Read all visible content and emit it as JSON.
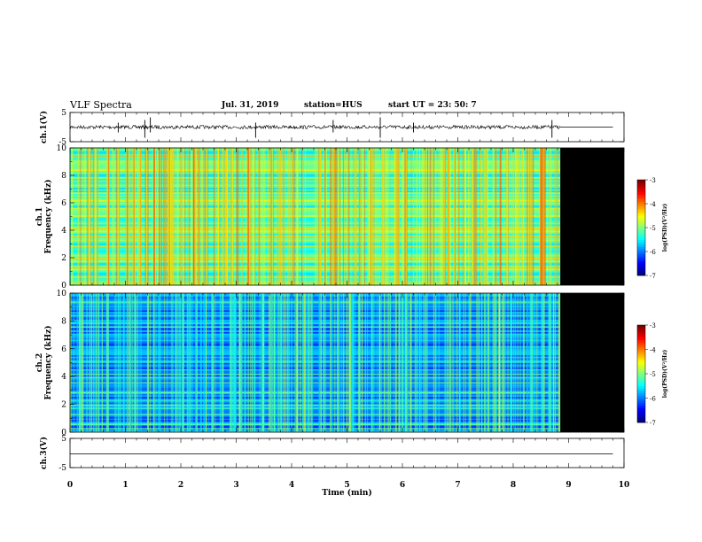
{
  "header": {
    "title": "VLF Spectra",
    "date": "Jul. 31, 2019",
    "station": "station=HUS",
    "start": "start  UT  =   23: 50: 7"
  },
  "chart_data": [
    {
      "type": "line",
      "name": "ch1-waveform",
      "ylabel": "ch.1(V)",
      "ylim": [
        -5,
        5
      ],
      "yticks": [
        "5",
        "-5"
      ],
      "xlim": [
        0,
        10
      ],
      "data_end_min": 8.85,
      "flat_trace_after_data": true
    },
    {
      "type": "heatmap",
      "name": "ch1-spectrogram",
      "ylabel": "ch.1\nFrequency (kHz)",
      "ylim": [
        0,
        10
      ],
      "yticks": [
        "0",
        "2",
        "4",
        "6",
        "8",
        "10"
      ],
      "xlim": [
        0,
        10
      ],
      "data_end_min": 8.85,
      "no_data_color": "#000000",
      "colorbar": {
        "label": "log(PSD)(V²/Hz)",
        "range": [
          -7,
          -3
        ],
        "ticks": [
          "-3",
          "-4",
          "-5",
          "-6",
          "-7"
        ]
      }
    },
    {
      "type": "heatmap",
      "name": "ch2-spectrogram",
      "ylabel": "ch.2\nFrequency (kHz)",
      "ylim": [
        0,
        10
      ],
      "yticks": [
        "0",
        "2",
        "4",
        "6",
        "8",
        "10"
      ],
      "xlim": [
        0,
        10
      ],
      "data_end_min": 8.85,
      "no_data_color": "#000000",
      "colorbar": {
        "label": "log(PSD)(V²/Hz)",
        "range": [
          -7,
          -3
        ],
        "ticks": [
          "-3",
          "-4",
          "-5",
          "-6",
          "-7"
        ]
      }
    },
    {
      "type": "line",
      "name": "ch3-waveform",
      "ylabel": "ch.3(V)",
      "ylim": [
        -5,
        5
      ],
      "yticks": [
        "5",
        "-5"
      ],
      "xlim": [
        0,
        10
      ],
      "xlabel": "Time  (min)",
      "xticks": [
        "0",
        "1",
        "2",
        "3",
        "4",
        "5",
        "6",
        "7",
        "8",
        "9",
        "10"
      ],
      "flat": true
    }
  ]
}
